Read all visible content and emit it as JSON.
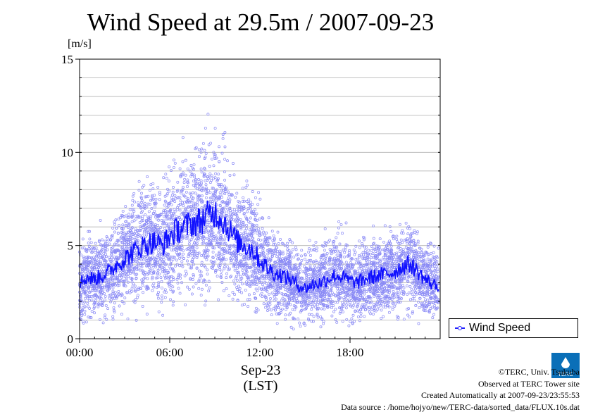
{
  "chart_data": {
    "type": "scatter",
    "title": "Wind Speed at 29.5m / 2007-09-23",
    "ylabel": "[m/s]",
    "xlabel_date": "Sep-23",
    "xlabel_tz": "(LST)",
    "ylim": [
      0,
      15
    ],
    "xlim_hours": [
      0,
      24
    ],
    "y_ticks": [
      "0",
      "5",
      "10",
      "15"
    ],
    "x_ticks": [
      "00:00",
      "06:00",
      "12:00",
      "18:00"
    ],
    "grid": true,
    "legend_position": "right",
    "series": [
      {
        "name": "Wind Speed",
        "color": "#2020ff",
        "x_hours": [
          0,
          0.5,
          1,
          1.5,
          2,
          2.5,
          3,
          3.5,
          4,
          4.5,
          5,
          5.5,
          6,
          6.5,
          7,
          7.5,
          8,
          8.5,
          9,
          9.5,
          10,
          10.5,
          11,
          11.5,
          12,
          12.5,
          13,
          13.5,
          14,
          14.5,
          15,
          15.5,
          16,
          16.5,
          17,
          17.5,
          18,
          18.5,
          19,
          19.5,
          20,
          20.5,
          21,
          21.5,
          22,
          22.5,
          23,
          23.5
        ],
        "mean_values": [
          3.0,
          3.3,
          3.2,
          3.4,
          3.6,
          4.0,
          4.3,
          4.6,
          4.9,
          5.1,
          5.2,
          5.0,
          5.5,
          5.8,
          6.0,
          6.2,
          6.3,
          6.6,
          6.8,
          6.4,
          5.8,
          5.2,
          5.0,
          4.8,
          4.2,
          3.8,
          3.5,
          3.4,
          3.2,
          2.9,
          2.7,
          2.9,
          3.0,
          3.2,
          3.4,
          3.3,
          3.1,
          3.0,
          3.2,
          3.3,
          3.4,
          3.5,
          3.6,
          3.9,
          4.0,
          3.6,
          3.2,
          2.9
        ]
      }
    ]
  },
  "legend": {
    "label": "Wind Speed"
  },
  "footer": {
    "line1": "©TERC, Univ. Tsukuba",
    "line2": "Observed at TERC Tower site",
    "line3": "Created Automatically at 2007-09-23/23:55:53",
    "line4": "Data source : /home/hojyo/new/TERC-data/sorted_data/FLUX.10s.dat"
  },
  "logo": {
    "text": "TERC"
  }
}
